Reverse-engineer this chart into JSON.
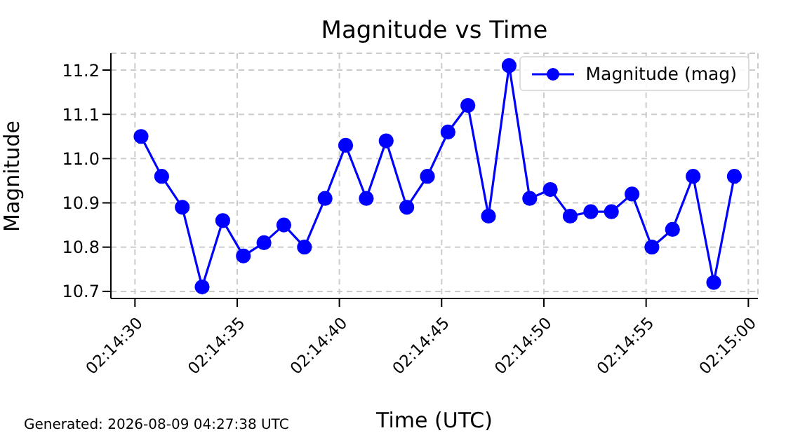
{
  "chart_data": {
    "type": "line",
    "title": "Magnitude vs Time",
    "xlabel": "Time (UTC)",
    "ylabel": "Magnitude",
    "annotations": [
      "Generated: 2026-08-09 04:27:38 UTC"
    ],
    "x": [
      2.24175,
      2.24203,
      2.24231,
      2.24258,
      2.24286,
      2.24314,
      2.24342,
      2.24369,
      2.24397,
      2.24425,
      2.24453,
      2.24481,
      2.24508,
      2.24536,
      2.24564,
      2.24592,
      2.24619,
      2.24647,
      2.24675,
      2.24703,
      2.24731,
      2.24758,
      2.24786,
      2.24814,
      2.24842,
      2.24869,
      2.24897,
      2.24925,
      2.24953,
      2.24981
    ],
    "series": [
      {
        "name": "Magnitude (mag)",
        "color": "#0000ff",
        "values": [
          11.05,
          10.96,
          10.89,
          10.71,
          10.86,
          10.78,
          10.81,
          10.85,
          10.8,
          10.91,
          11.03,
          10.91,
          11.04,
          10.89,
          10.96,
          11.06,
          11.12,
          10.87,
          11.21,
          10.91,
          10.93,
          10.87,
          10.88,
          10.88,
          10.92,
          10.8,
          10.84,
          10.96,
          10.72,
          10.96
        ]
      }
    ],
    "xlim": [
      2.24134,
      2.25013
    ],
    "xticks": [
      {
        "value": 2.241667,
        "label": "02:14:30"
      },
      {
        "value": 2.243056,
        "label": "02:14:35"
      },
      {
        "value": 2.244444,
        "label": "02:14:40"
      },
      {
        "value": 2.245833,
        "label": "02:14:45"
      },
      {
        "value": 2.247222,
        "label": "02:14:50"
      },
      {
        "value": 2.248611,
        "label": "02:14:55"
      },
      {
        "value": 2.25,
        "label": "02:15:00"
      }
    ],
    "ylim": [
      10.684,
      11.238
    ],
    "yticks": [
      10.7,
      10.8,
      10.9,
      {
        "value": 11.0,
        "label": "11.0"
      },
      11.1,
      11.2
    ],
    "grid": true,
    "legend": "top right",
    "marker": "circle",
    "line_style": "solid"
  }
}
